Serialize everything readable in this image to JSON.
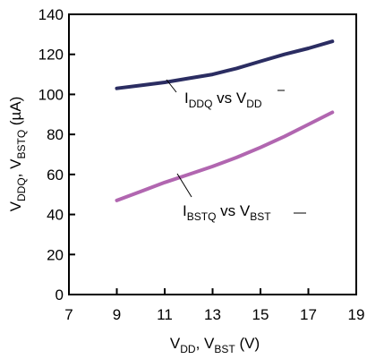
{
  "chart_data": {
    "type": "line",
    "ylabel": {
      "main": "V",
      "sub1": "DDQ",
      "sep": ", V",
      "sub2": "BSTQ",
      "rest": " (µA)"
    },
    "xlabel": {
      "main": "V",
      "sub1": "DD",
      "sep": ", V",
      "sub2": "BST",
      "rest": " (V)"
    },
    "xlim": [
      7,
      19
    ],
    "ylim": [
      0,
      140
    ],
    "x_ticks": [
      "7",
      "9",
      "11",
      "13",
      "15",
      "17",
      "19"
    ],
    "y_ticks": [
      "0",
      "20",
      "40",
      "60",
      "80",
      "100",
      "120",
      "140"
    ],
    "grid": false,
    "series": [
      {
        "name": "IDDQ vs VDD",
        "color": "#2b2d62",
        "x": [
          9,
          10,
          11,
          12,
          13,
          14,
          15,
          16,
          17,
          18
        ],
        "y": [
          103,
          104.5,
          106,
          108,
          110,
          113,
          116.5,
          120,
          123,
          126.5
        ],
        "annotation": {
          "main": "I",
          "sub1": "DDQ",
          "mid": " vs V",
          "sub2": "DD"
        }
      },
      {
        "name": "IBSTQ vs VBST",
        "color": "#b166b0",
        "x": [
          9,
          10,
          11,
          12,
          13,
          14,
          15,
          16,
          17,
          18
        ],
        "y": [
          47,
          51.5,
          56,
          60,
          64,
          68.5,
          73.5,
          79,
          85,
          91
        ],
        "annotation": {
          "main": "I",
          "sub1": "BSTQ",
          "mid": " vs V",
          "sub2": "BST"
        }
      }
    ]
  }
}
